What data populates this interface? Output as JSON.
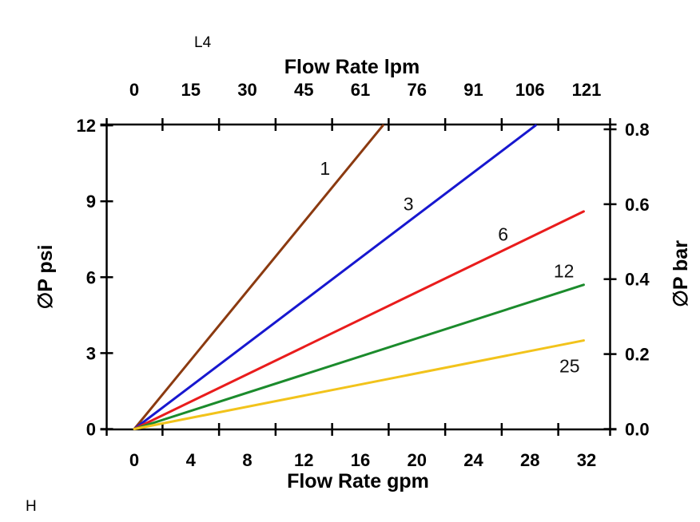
{
  "chart_data": {
    "type": "line",
    "title": "",
    "corner_labels": {
      "top_left": "L4",
      "bottom_left": "H"
    },
    "x_axis_bottom": {
      "title": "Flow Rate gpm",
      "range": [
        0,
        32
      ],
      "label_values": [
        0,
        4,
        8,
        12,
        16,
        20,
        24,
        28,
        32
      ],
      "labels": [
        "0",
        "4",
        "8",
        "12",
        "16",
        "20",
        "24",
        "28",
        "32"
      ],
      "tick_mark_values": [
        2,
        6,
        10,
        14,
        18,
        22,
        26,
        30
      ]
    },
    "x_axis_top": {
      "title": "Flow Rate lpm",
      "labels": [
        "0",
        "15",
        "30",
        "45",
        "61",
        "76",
        "91",
        "106",
        "121"
      ],
      "tick_mark_values": [
        2,
        6,
        10,
        14,
        18,
        22,
        26,
        30
      ]
    },
    "y_axis_left": {
      "title": "∅P psi",
      "range": [
        0,
        12
      ],
      "label_values": [
        0,
        3,
        6,
        9,
        12
      ],
      "labels": [
        "0",
        "3",
        "6",
        "9",
        "12"
      ]
    },
    "y_axis_right": {
      "title": "∅P bar",
      "range": [
        0,
        0.8
      ],
      "label_values": [
        0,
        0.2,
        0.4,
        0.6,
        0.8
      ],
      "labels": [
        "0.0",
        "0.2",
        "0.4",
        "0.6",
        "0.8"
      ]
    },
    "grid": false,
    "legend": "labels-on-lines",
    "series": [
      {
        "name": "1",
        "color": "#8b3a10",
        "points_gpm_psi": [
          [
            0,
            0
          ],
          [
            17.6,
            12.0
          ]
        ],
        "label_at_gpm_psi": [
          13.5,
          10.3
        ]
      },
      {
        "name": "3",
        "color": "#1717cf",
        "points_gpm_psi": [
          [
            0,
            0
          ],
          [
            28.4,
            12.0
          ]
        ],
        "label_at_gpm_psi": [
          19.4,
          8.9
        ]
      },
      {
        "name": "6",
        "color": "#e91c1c",
        "points_gpm_psi": [
          [
            0,
            0
          ],
          [
            31.8,
            8.6
          ]
        ],
        "label_at_gpm_psi": [
          26.1,
          7.7
        ]
      },
      {
        "name": "12",
        "color": "#1b8b2c",
        "points_gpm_psi": [
          [
            0,
            0
          ],
          [
            31.8,
            5.7
          ]
        ],
        "label_at_gpm_psi": [
          30.4,
          6.25
        ]
      },
      {
        "name": "25",
        "color": "#f2c31b",
        "points_gpm_psi": [
          [
            0,
            0
          ],
          [
            31.8,
            3.5
          ]
        ],
        "label_at_gpm_psi": [
          30.8,
          2.5
        ]
      }
    ]
  }
}
